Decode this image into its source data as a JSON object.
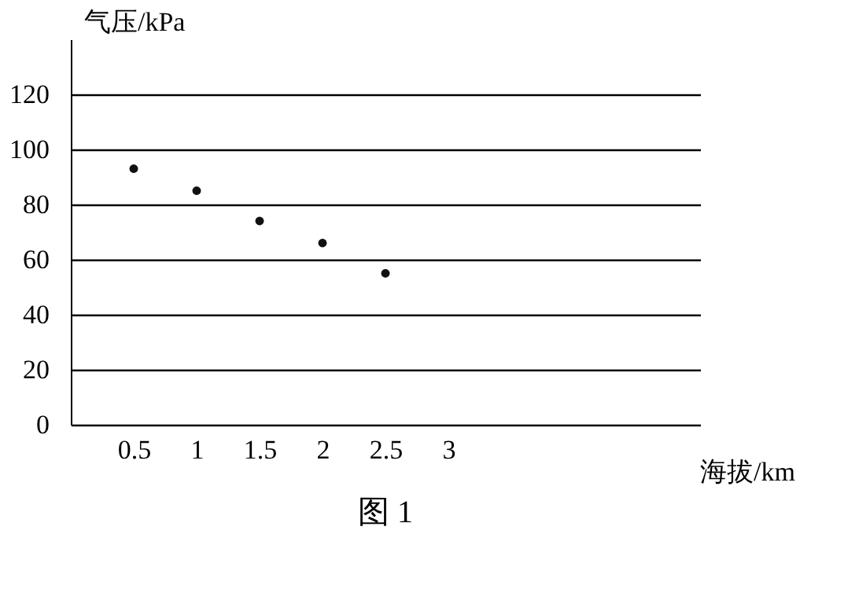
{
  "chart_data": {
    "type": "scatter",
    "xlabel": "海拔/km",
    "ylabel": "气压/kPa",
    "x": [
      0.5,
      1,
      1.5,
      2,
      2.5
    ],
    "series": [
      {
        "color": "#111111",
        "values": [
          93,
          85,
          74,
          66,
          55
        ]
      }
    ],
    "marker": "circle",
    "grid": "y",
    "xlim": [
      0,
      5
    ],
    "xticks": [
      0.5,
      1,
      1.5,
      2,
      2.5,
      3
    ],
    "ylim": [
      0,
      140
    ],
    "yticks": [
      0,
      20,
      40,
      60,
      80,
      100,
      120
    ],
    "annotations": [
      "图 1"
    ]
  }
}
